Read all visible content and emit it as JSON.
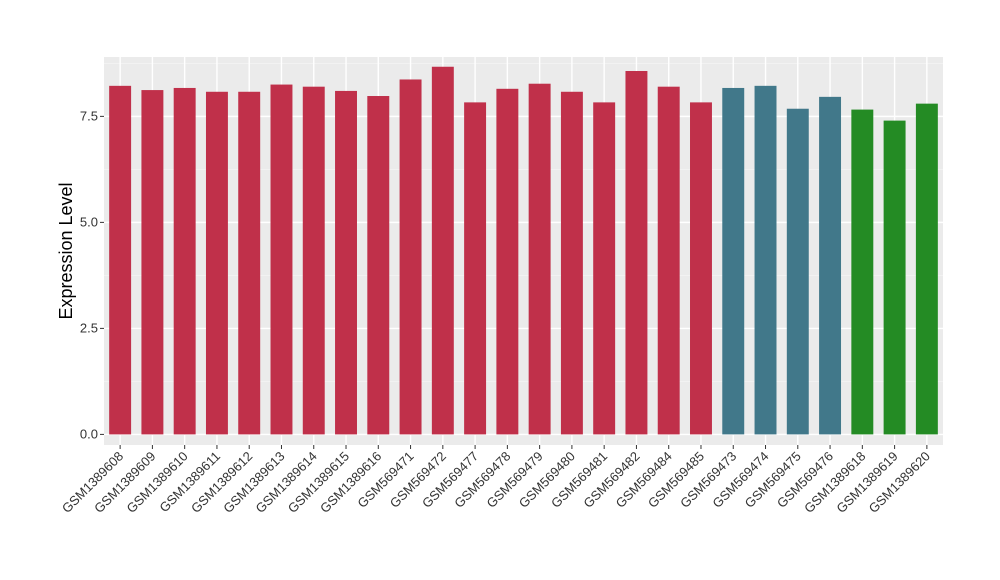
{
  "chart_data": {
    "type": "bar",
    "xlabel": "",
    "ylabel": "Expression Level",
    "ylim": [
      0,
      8.9
    ],
    "yticks": [
      "0.0",
      "2.5",
      "5.0",
      "7.5"
    ],
    "grid": true,
    "legend": "none",
    "colors": {
      "group1": "#c0304a",
      "group2": "#41788a",
      "group3": "#248b24"
    },
    "panel_background": "#ebebeb",
    "categories": [
      "GSM1389608",
      "GSM1389609",
      "GSM1389610",
      "GSM1389611",
      "GSM1389612",
      "GSM1389613",
      "GSM1389614",
      "GSM1389615",
      "GSM1389616",
      "GSM569471",
      "GSM569472",
      "GSM569477",
      "GSM569478",
      "GSM569479",
      "GSM569480",
      "GSM569481",
      "GSM569482",
      "GSM569484",
      "GSM569485",
      "GSM569473",
      "GSM569474",
      "GSM569475",
      "GSM569476",
      "GSM1389618",
      "GSM1389619",
      "GSM1389620"
    ],
    "values": [
      8.22,
      8.12,
      8.17,
      8.08,
      8.08,
      8.25,
      8.2,
      8.1,
      7.98,
      8.37,
      8.67,
      7.83,
      8.15,
      8.27,
      8.08,
      7.83,
      8.57,
      8.2,
      7.83,
      8.17,
      8.22,
      7.68,
      7.96,
      7.66,
      7.4,
      7.8
    ],
    "groups": [
      "group1",
      "group1",
      "group1",
      "group1",
      "group1",
      "group1",
      "group1",
      "group1",
      "group1",
      "group1",
      "group1",
      "group1",
      "group1",
      "group1",
      "group1",
      "group1",
      "group1",
      "group1",
      "group1",
      "group2",
      "group2",
      "group2",
      "group2",
      "group3",
      "group3",
      "group3"
    ]
  }
}
